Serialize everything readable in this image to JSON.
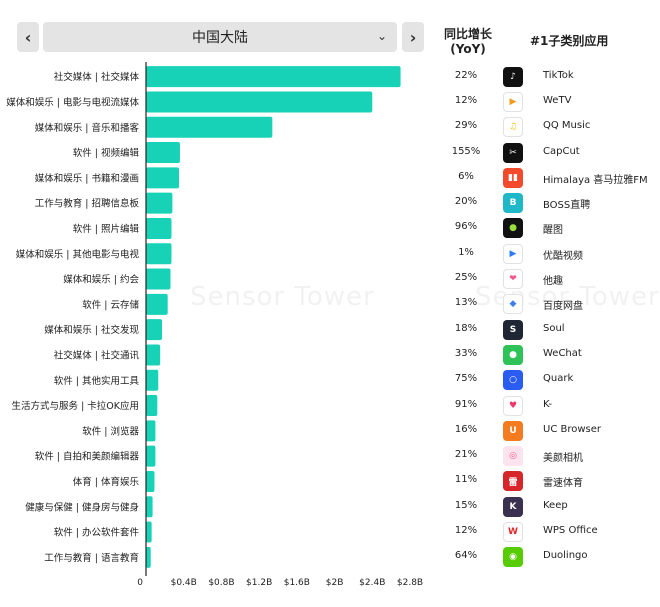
{
  "header": {
    "prev_label": "‹",
    "next_label": "›",
    "region": "中国大陆",
    "yoy_label_line1": "同比增长",
    "yoy_label_line2": "(YoY)",
    "app_label": "#1子类别应用"
  },
  "watermark": "Sensor Tower",
  "colors": {
    "bar": "#18d2b8",
    "axis": "#222222"
  },
  "chart_data": {
    "type": "bar",
    "orientation": "horizontal",
    "categories": [
      "社交媒体 | 社交媒体",
      "媒体和娱乐 | 电影与电视流媒体",
      "媒体和娱乐 | 音乐和播客",
      "软件 | 视频编辑",
      "媒体和娱乐 | 书籍和漫画",
      "工作与教育 | 招聘信息板",
      "软件 | 照片编辑",
      "媒体和娱乐 | 其他电影与电视",
      "媒体和娱乐 | 约会",
      "软件 | 云存储",
      "媒体和娱乐 | 社交发现",
      "社交媒体 | 社交通讯",
      "软件 | 其他实用工具",
      "生活方式与服务 | 卡拉OK应用",
      "软件 | 浏览器",
      "软件 | 自拍和美颜编辑器",
      "体育 | 体育娱乐",
      "健康与保健 | 健身房与健身",
      "软件 | 办公软件套件",
      "工作与教育 | 语言教育"
    ],
    "values": [
      2.7,
      2.4,
      1.34,
      0.36,
      0.35,
      0.28,
      0.27,
      0.27,
      0.26,
      0.23,
      0.17,
      0.15,
      0.13,
      0.12,
      0.1,
      0.1,
      0.09,
      0.07,
      0.06,
      0.05
    ],
    "unit": "B",
    "xlim": [
      0,
      2.8
    ],
    "xticks": [
      0,
      0.4,
      0.8,
      1.2,
      1.6,
      2.0,
      2.4,
      2.8
    ],
    "xtick_labels": [
      "0",
      "$0.4B",
      "$0.8B",
      "$1.2B",
      "$1.6B",
      "$2B",
      "$2.4B",
      "$2.8B"
    ],
    "grid": false,
    "yoy": [
      "22%",
      "12%",
      "29%",
      "155%",
      "6%",
      "20%",
      "96%",
      "1%",
      "25%",
      "13%",
      "18%",
      "33%",
      "75%",
      "91%",
      "16%",
      "21%",
      "11%",
      "15%",
      "12%",
      "64%"
    ],
    "top_apps": [
      "TikTok",
      "WeTV",
      "QQ Music",
      "CapCut",
      "Himalaya 喜马拉雅FM",
      "BOSS直聘",
      "醒图",
      "优酷视频",
      "他趣",
      "百度网盘",
      "Soul",
      "WeChat",
      "Quark",
      "K-",
      "UC Browser",
      "美颜相机",
      "雷速体育",
      "Keep",
      "WPS Office",
      "Duolingo"
    ]
  },
  "icons": [
    {
      "name": "tiktok-icon",
      "bg": "#111111",
      "glyph": "♪",
      "fg": "#ffffff"
    },
    {
      "name": "wetv-icon",
      "bg": "#ffffff",
      "glyph": "▶",
      "fg": "#f29a1a"
    },
    {
      "name": "qq-music-icon",
      "bg": "#ffffff",
      "glyph": "♫",
      "fg": "#f5c518"
    },
    {
      "name": "capcut-icon",
      "bg": "#111111",
      "glyph": "✂",
      "fg": "#ffffff"
    },
    {
      "name": "himalaya-icon",
      "bg": "#f24a2b",
      "glyph": "▮▮",
      "fg": "#ffffff"
    },
    {
      "name": "boss-icon",
      "bg": "#1fb8c8",
      "glyph": "B",
      "fg": "#ffffff"
    },
    {
      "name": "xingtu-icon",
      "bg": "#111111",
      "glyph": "●",
      "fg": "#9be03a"
    },
    {
      "name": "youku-icon",
      "bg": "#ffffff",
      "glyph": "▶",
      "fg": "#2c7cf6"
    },
    {
      "name": "tacu-icon",
      "bg": "#ffffff",
      "glyph": "❤",
      "fg": "#f05a8a"
    },
    {
      "name": "baidu-pan-icon",
      "bg": "#ffffff",
      "glyph": "◆",
      "fg": "#3c7ef0"
    },
    {
      "name": "soul-icon",
      "bg": "#1e2733",
      "glyph": "S",
      "fg": "#ffffff"
    },
    {
      "name": "wechat-icon",
      "bg": "#2ec259",
      "glyph": "●",
      "fg": "#ffffff"
    },
    {
      "name": "quark-icon",
      "bg": "#2a5cf2",
      "glyph": "○",
      "fg": "#ffffff"
    },
    {
      "name": "k-song-icon",
      "bg": "#ffffff",
      "glyph": "♥",
      "fg": "#f0386a"
    },
    {
      "name": "uc-browser-icon",
      "bg": "#f47b20",
      "glyph": "U",
      "fg": "#ffffff"
    },
    {
      "name": "meiyan-icon",
      "bg": "#fde3ee",
      "glyph": "◎",
      "fg": "#f05a8a"
    },
    {
      "name": "leisu-icon",
      "bg": "#d6262a",
      "glyph": "雷",
      "fg": "#ffffff"
    },
    {
      "name": "keep-icon",
      "bg": "#3a3050",
      "glyph": "K",
      "fg": "#ffffff"
    },
    {
      "name": "wps-icon",
      "bg": "#ffffff",
      "glyph": "W",
      "fg": "#e0262a"
    },
    {
      "name": "duolingo-icon",
      "bg": "#58cc02",
      "glyph": "◉",
      "fg": "#ffffff"
    }
  ]
}
